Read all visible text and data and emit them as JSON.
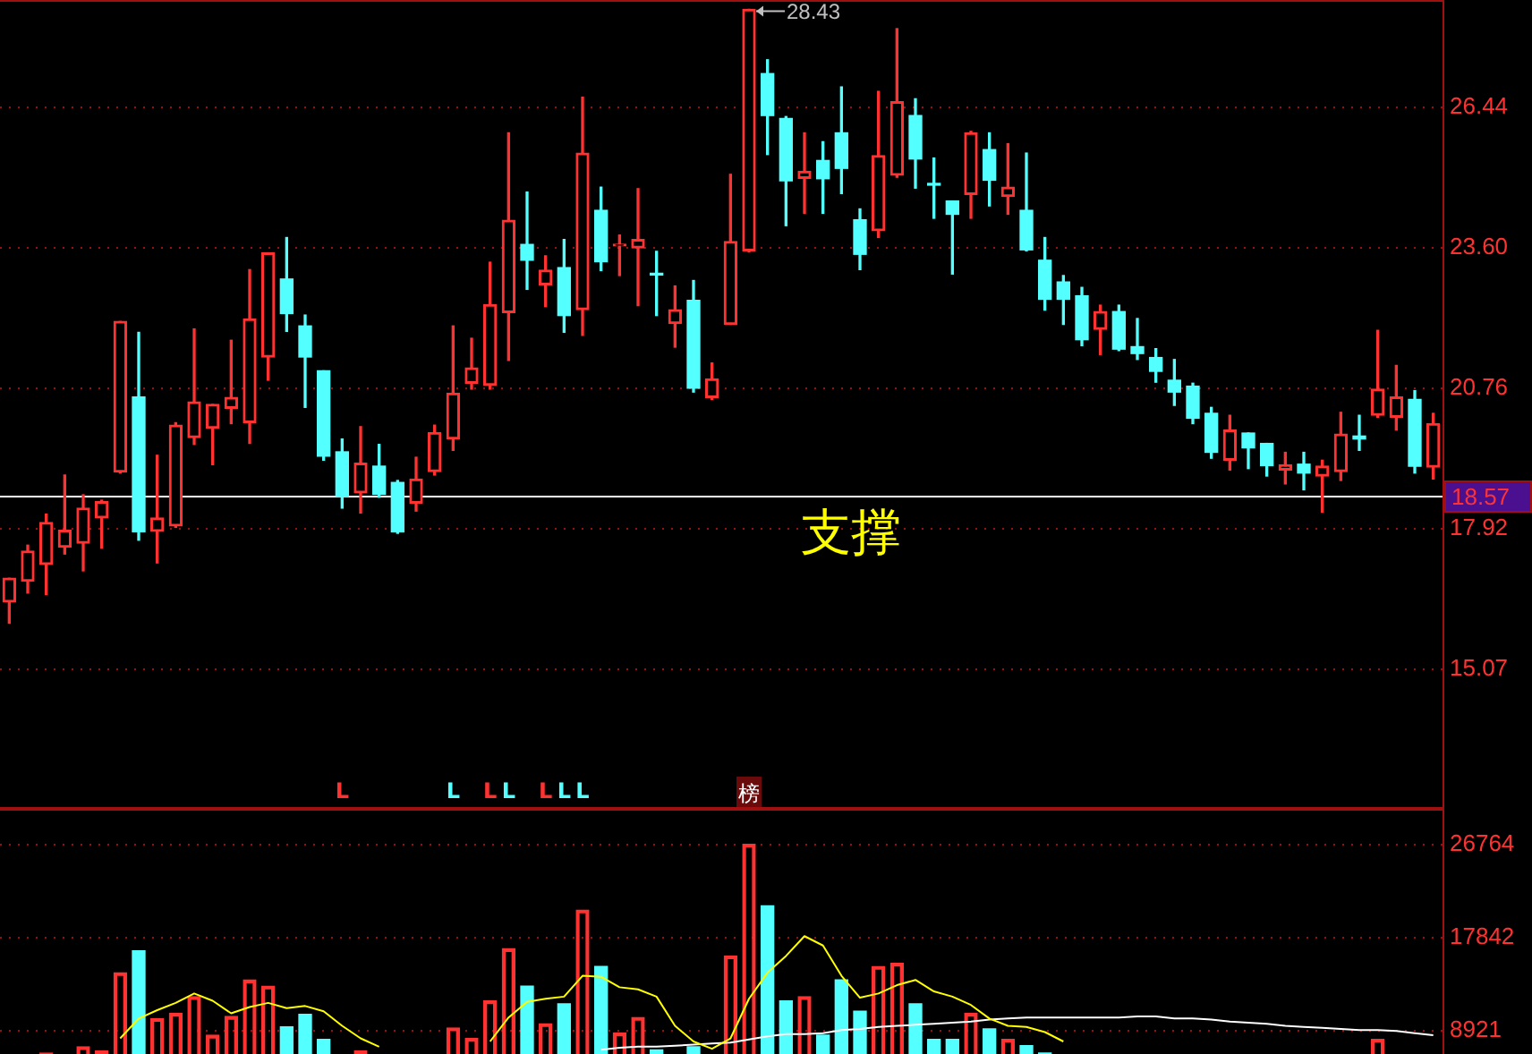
{
  "chart_data": [
    {
      "type": "candlestick",
      "categories": [
        null,
        null,
        null,
        null,
        null,
        null,
        null,
        null,
        null,
        null,
        null,
        null,
        null,
        null,
        null,
        null,
        null,
        null,
        null,
        null,
        null,
        null,
        null,
        null,
        null,
        null,
        null,
        null,
        null,
        null,
        null,
        null,
        null,
        null,
        null,
        null,
        null,
        null,
        null,
        null,
        null,
        null,
        null,
        null,
        null,
        null,
        null,
        null,
        null,
        null,
        null,
        null,
        null,
        null,
        null,
        null,
        null,
        null,
        null,
        null,
        null,
        null,
        null,
        null,
        null,
        null,
        null,
        null,
        null,
        null,
        null,
        null,
        null,
        null,
        null,
        null,
        null,
        null
      ],
      "ohlc": [
        [
          16.43,
          16.91,
          16.0,
          16.91
        ],
        [
          16.85,
          17.58,
          16.61,
          17.46
        ],
        [
          17.19,
          18.21,
          16.58,
          18.04
        ],
        [
          17.54,
          19.0,
          17.4,
          17.88
        ],
        [
          17.62,
          18.6,
          17.06,
          18.33
        ],
        [
          18.13,
          18.49,
          17.52,
          18.46
        ],
        [
          19.06,
          22.11,
          19.04,
          22.11
        ],
        [
          20.58,
          21.89,
          17.68,
          17.85
        ],
        [
          17.86,
          19.4,
          17.22,
          18.13
        ],
        [
          17.97,
          20.06,
          17.94,
          20.01
        ],
        [
          19.76,
          21.96,
          19.62,
          20.48
        ],
        [
          19.95,
          20.43,
          19.21,
          20.43
        ],
        [
          20.35,
          21.73,
          20.04,
          20.57
        ],
        [
          20.06,
          23.16,
          19.64,
          22.16
        ],
        [
          21.39,
          23.5,
          20.92,
          23.5
        ],
        [
          22.97,
          23.81,
          21.91,
          22.27
        ],
        [
          22.02,
          22.24,
          20.37,
          21.39
        ],
        [
          21.11,
          21.11,
          19.3,
          19.38
        ],
        [
          19.47,
          19.73,
          18.33,
          18.57
        ],
        [
          18.64,
          19.98,
          18.23,
          19.24
        ],
        [
          19.18,
          19.62,
          18.55,
          18.61
        ],
        [
          18.85,
          18.89,
          17.82,
          17.85
        ],
        [
          18.43,
          19.36,
          18.27,
          18.92
        ],
        [
          19.07,
          20.01,
          19.0,
          19.86
        ],
        [
          19.73,
          22.02,
          19.5,
          20.66
        ],
        [
          20.86,
          21.77,
          20.74,
          21.17
        ],
        [
          20.82,
          23.31,
          20.74,
          22.45
        ],
        [
          22.29,
          25.93,
          21.32,
          24.16
        ],
        [
          23.67,
          24.73,
          22.76,
          23.35
        ],
        [
          22.85,
          23.44,
          22.41,
          23.15
        ],
        [
          23.2,
          23.77,
          21.89,
          22.23
        ],
        [
          22.35,
          26.65,
          21.83,
          25.52
        ],
        [
          24.36,
          24.83,
          23.14,
          23.32
        ],
        [
          23.64,
          23.86,
          23.04,
          23.67
        ],
        [
          23.6,
          24.8,
          22.43,
          23.77
        ],
        [
          23.08,
          23.53,
          22.23,
          23.05
        ],
        [
          22.07,
          22.83,
          21.59,
          22.35
        ],
        [
          22.54,
          22.94,
          20.68,
          20.76
        ],
        [
          20.57,
          21.27,
          20.53,
          20.95
        ],
        [
          22.05,
          25.09,
          22.05,
          23.73
        ],
        [
          23.54,
          28.43,
          23.52,
          28.43
        ],
        [
          27.13,
          27.41,
          25.49,
          26.28
        ],
        [
          26.22,
          26.26,
          24.05,
          24.96
        ],
        [
          25.01,
          25.93,
          24.3,
          25.15
        ],
        [
          25.37,
          25.75,
          24.3,
          25.0
        ],
        [
          25.93,
          26.86,
          24.7,
          25.21
        ],
        [
          24.17,
          24.39,
          23.16,
          23.47
        ],
        [
          23.95,
          26.77,
          23.81,
          25.47
        ],
        [
          25.07,
          28.04,
          25.03,
          26.56
        ],
        [
          26.28,
          26.62,
          24.81,
          25.4
        ],
        [
          24.9,
          25.42,
          24.2,
          24.87
        ],
        [
          24.55,
          24.55,
          23.07,
          24.28
        ],
        [
          24.68,
          25.96,
          24.2,
          25.93
        ],
        [
          25.59,
          25.93,
          24.45,
          24.97
        ],
        [
          24.64,
          25.71,
          24.28,
          24.83
        ],
        [
          24.36,
          25.52,
          23.54,
          23.56
        ],
        [
          23.35,
          23.81,
          22.34,
          22.56
        ],
        [
          22.91,
          23.04,
          22.05,
          22.56
        ],
        [
          22.63,
          22.8,
          21.62,
          21.74
        ],
        [
          21.95,
          22.44,
          21.44,
          22.31
        ],
        [
          22.31,
          22.44,
          21.52,
          21.55
        ],
        [
          21.6,
          22.17,
          21.34,
          21.46
        ],
        [
          21.38,
          21.56,
          20.88,
          21.1
        ],
        [
          20.92,
          21.34,
          20.41,
          20.68
        ],
        [
          20.8,
          20.86,
          20.04,
          20.15
        ],
        [
          20.25,
          20.37,
          19.34,
          19.46
        ],
        [
          19.3,
          20.21,
          19.1,
          19.91
        ],
        [
          19.85,
          19.85,
          19.13,
          19.55
        ],
        [
          19.64,
          19.64,
          18.98,
          19.19
        ],
        [
          19.1,
          19.46,
          18.82,
          19.21
        ],
        [
          19.22,
          19.46,
          18.7,
          19.04
        ],
        [
          18.98,
          19.3,
          18.25,
          19.18
        ],
        [
          19.07,
          20.27,
          18.89,
          19.83
        ],
        [
          19.79,
          20.21,
          19.5,
          19.73
        ],
        [
          20.21,
          21.93,
          20.17,
          20.74
        ],
        [
          20.17,
          21.22,
          19.91,
          20.58
        ],
        [
          20.53,
          20.71,
          19.04,
          19.18
        ],
        [
          19.16,
          20.25,
          18.92,
          20.04
        ]
      ],
      "colors": [
        "#ff3232",
        "#ff3232",
        "#ff3232",
        "#ff3232",
        "#ff3232",
        "#ff3232",
        "#ff3232",
        "#54ffff",
        "#ff3232",
        "#ff3232",
        "#ff3232",
        "#ff3232",
        "#ff3232",
        "#ff3232",
        "#ff3232",
        "#54ffff",
        "#54ffff",
        "#54ffff",
        "#54ffff",
        "#ff3232",
        "#54ffff",
        "#54ffff",
        "#ff3232",
        "#ff3232",
        "#ff3232",
        "#ff3232",
        "#ff3232",
        "#ff3232",
        "#54ffff",
        "#ff3232",
        "#54ffff",
        "#ff3232",
        "#54ffff",
        "#ff3232",
        "#ff3232",
        "#54ffff",
        "#ff3232",
        "#54ffff",
        "#ff3232",
        "#ff3232",
        "#ff3232",
        "#54ffff",
        "#54ffff",
        "#ff3232",
        "#54ffff",
        "#54ffff",
        "#54ffff",
        "#ff3232",
        "#ff3232",
        "#54ffff",
        "#54ffff",
        "#54ffff",
        "#ff3232",
        "#54ffff",
        "#ff3232",
        "#54ffff",
        "#54ffff",
        "#54ffff",
        "#54ffff",
        "#ff3232",
        "#54ffff",
        "#54ffff",
        "#54ffff",
        "#54ffff",
        "#54ffff",
        "#54ffff",
        "#ff3232",
        "#54ffff",
        "#54ffff",
        "#ff3232",
        "#54ffff",
        "#ff3232",
        "#ff3232",
        "#54ffff",
        "#ff3232",
        "#ff3232",
        "#54ffff",
        "#ff3232"
      ],
      "ylim": [
        12.24,
        28.62
      ],
      "yticks": [
        15.07,
        17.92,
        20.76,
        {
          "value": 23.6,
          "label": "23.60"
        },
        26.44
      ],
      "grid": "y",
      "ref_lines": [
        {
          "axis": "y",
          "value": 18.57,
          "label": "18.57",
          "color": "#ffffff"
        }
      ],
      "annotations": [
        "28.43",
        "支撑",
        "L",
        "L",
        "L",
        "L",
        "L",
        "L",
        "L",
        "榜"
      ]
    },
    {
      "type": "bar",
      "categories": [
        null,
        null,
        null,
        null,
        null,
        null,
        null,
        null,
        null,
        null,
        null,
        null,
        null,
        null,
        null,
        null,
        null,
        null,
        null,
        null,
        null,
        null,
        null,
        null,
        null,
        null,
        null,
        null,
        null,
        null,
        null,
        null,
        null,
        null,
        null,
        null,
        null,
        null,
        null,
        null,
        null,
        null,
        null,
        null,
        null,
        null,
        null,
        null,
        null,
        null,
        null,
        null,
        null,
        null,
        null,
        null,
        null,
        null,
        null,
        null,
        null,
        null,
        null,
        null,
        null,
        null,
        null,
        null,
        null,
        null,
        null,
        null,
        null,
        null,
        null,
        null,
        null,
        null
      ],
      "series": [
        {
          "values": [
            null,
            null,
            6800,
            null,
            7400,
            7000,
            14500,
            16600,
            10100,
            10600,
            12200,
            8500,
            10300,
            13800,
            13200,
            9300,
            10500,
            8100,
            null,
            7000,
            null,
            null,
            null,
            null,
            9200,
            8200,
            11800,
            16800,
            13200,
            9600,
            11500,
            20500,
            15100,
            8700,
            10200,
            7100,
            null,
            7400,
            null,
            16100,
            26800,
            20900,
            11800,
            12200,
            8500,
            13800,
            10800,
            15100,
            15400,
            11500,
            8100,
            8100,
            10600,
            9100,
            8100,
            7500,
            6800,
            null,
            null,
            null,
            null,
            null,
            null,
            null,
            null,
            null,
            null,
            null,
            null,
            null,
            null,
            null,
            null,
            null,
            8100,
            null,
            null,
            null
          ],
          "colors": [
            "#ff3232",
            "#ff3232",
            "#ff3232",
            "#ff3232",
            "#ff3232",
            "#ff3232",
            "#ff3232",
            "#54ffff",
            "#ff3232",
            "#ff3232",
            "#ff3232",
            "#ff3232",
            "#ff3232",
            "#ff3232",
            "#ff3232",
            "#54ffff",
            "#54ffff",
            "#54ffff",
            "#54ffff",
            "#ff3232",
            "#54ffff",
            "#54ffff",
            "#ff3232",
            "#ff3232",
            "#ff3232",
            "#ff3232",
            "#ff3232",
            "#ff3232",
            "#54ffff",
            "#ff3232",
            "#54ffff",
            "#ff3232",
            "#54ffff",
            "#ff3232",
            "#ff3232",
            "#54ffff",
            "#ff3232",
            "#54ffff",
            "#ff3232",
            "#ff3232",
            "#ff3232",
            "#54ffff",
            "#54ffff",
            "#ff3232",
            "#54ffff",
            "#54ffff",
            "#54ffff",
            "#ff3232",
            "#ff3232",
            "#54ffff",
            "#54ffff",
            "#54ffff",
            "#ff3232",
            "#54ffff",
            "#ff3232",
            "#54ffff",
            "#54ffff",
            "#54ffff",
            "#54ffff",
            "#ff3232",
            "#54ffff",
            "#54ffff",
            "#54ffff",
            "#54ffff",
            "#54ffff",
            "#54ffff",
            "#ff3232",
            "#54ffff",
            "#54ffff",
            "#ff3232",
            "#54ffff",
            "#ff3232",
            "#ff3232",
            "#54ffff",
            "#ff3232",
            "#ff3232",
            "#54ffff",
            "#ff3232"
          ]
        },
        {
          "type": "line",
          "color": "#ffff00",
          "values": [
            null,
            null,
            null,
            null,
            null,
            null,
            8200,
            10100,
            10900,
            11600,
            12500,
            11800,
            10600,
            11200,
            11600,
            11100,
            11300,
            10800,
            9400,
            8200,
            7400,
            null,
            null,
            null,
            null,
            null,
            7900,
            10200,
            11700,
            12000,
            12200,
            14200,
            14100,
            13100,
            12900,
            12200,
            9400,
            7900,
            7200,
            8200,
            12000,
            14500,
            16100,
            18000,
            17100,
            14200,
            12100,
            12500,
            13300,
            13800,
            12700,
            12200,
            11400,
            10100,
            9400,
            9300,
            8800,
            7900,
            null,
            null,
            null,
            null,
            null,
            null,
            null,
            null,
            null,
            null,
            null,
            null,
            null,
            null,
            null,
            null,
            null,
            null,
            null,
            null
          ]
        },
        {
          "type": "line",
          "color": "#ffffff",
          "values": [
            null,
            null,
            null,
            null,
            null,
            null,
            null,
            null,
            null,
            null,
            null,
            null,
            null,
            null,
            null,
            null,
            null,
            null,
            null,
            null,
            null,
            null,
            null,
            null,
            null,
            null,
            null,
            null,
            null,
            null,
            null,
            null,
            7100,
            7300,
            7400,
            7400,
            7500,
            7600,
            7700,
            7800,
            8100,
            8400,
            8600,
            8600,
            8700,
            9000,
            9100,
            9300,
            9400,
            9500,
            9600,
            9700,
            9800,
            10000,
            10100,
            10200,
            10200,
            10200,
            10200,
            10200,
            10200,
            10300,
            10300,
            10100,
            10100,
            10000,
            9800,
            9700,
            9600,
            9400,
            9300,
            9200,
            9100,
            9000,
            9000,
            8900,
            8700,
            8500
          ]
        }
      ],
      "ylim": [
        6700,
        30200
      ],
      "yticks": [
        8921,
        17842,
        26764
      ],
      "grid": "y",
      "marker": "none"
    }
  ]
}
